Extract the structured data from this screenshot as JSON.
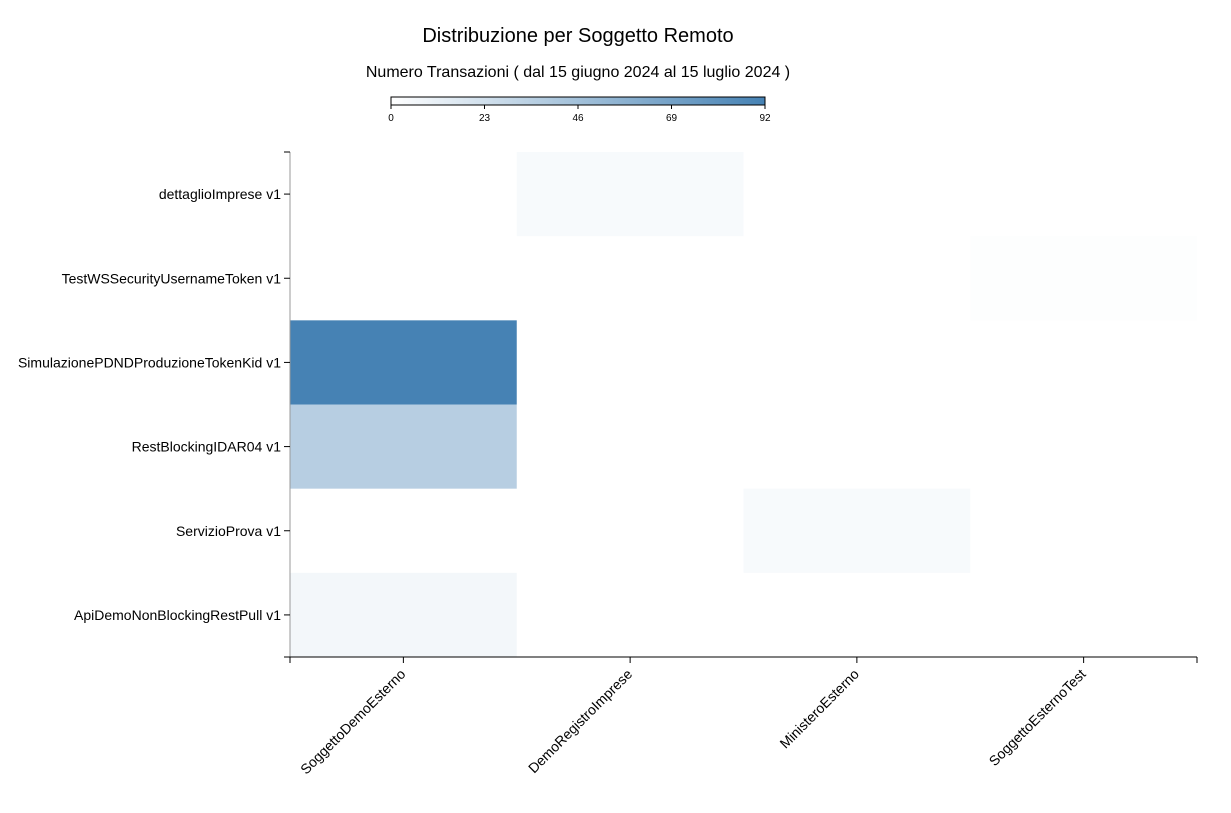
{
  "chart_data": {
    "type": "heatmap",
    "title": "Distribuzione per Soggetto Remoto",
    "subtitle": "Numero Transazioni ( dal 15 giugno 2024 al 15 luglio 2024 )",
    "x_categories": [
      "SoggettoDemoEsterno",
      "DemoRegistroImprese",
      "MinisteroEsterno",
      "SoggettoEsternoTest"
    ],
    "y_categories": [
      "dettaglioImprese v1",
      "TestWSSecurityUsernameToken v1",
      "SimulazionePDNDProduzioneTokenKid v1",
      "RestBlockingIDAR04 v1",
      "ServizioProva v1",
      "ApiDemoNonBlockingRestPull v1"
    ],
    "cells": [
      {
        "x": "DemoRegistroImprese",
        "y": "dettaglioImprese v1",
        "value": 4
      },
      {
        "x": "SoggettoEsternoTest",
        "y": "TestWSSecurityUsernameToken v1",
        "value": 1
      },
      {
        "x": "SoggettoDemoEsterno",
        "y": "SimulazionePDNDProduzioneTokenKid v1",
        "value": 92
      },
      {
        "x": "SoggettoDemoEsterno",
        "y": "RestBlockingIDAR04 v1",
        "value": 36
      },
      {
        "x": "MinisteroEsterno",
        "y": "ServizioProva v1",
        "value": 4
      },
      {
        "x": "SoggettoDemoEsterno",
        "y": "ApiDemoNonBlockingRestPull v1",
        "value": 6
      }
    ],
    "colorbar": {
      "min": 0,
      "max": 92,
      "ticks": [
        "0",
        "23",
        "46",
        "69",
        "92"
      ],
      "color_low": "#ffffff",
      "color_high": "#4682b4"
    },
    "legend_position": "top-center"
  }
}
